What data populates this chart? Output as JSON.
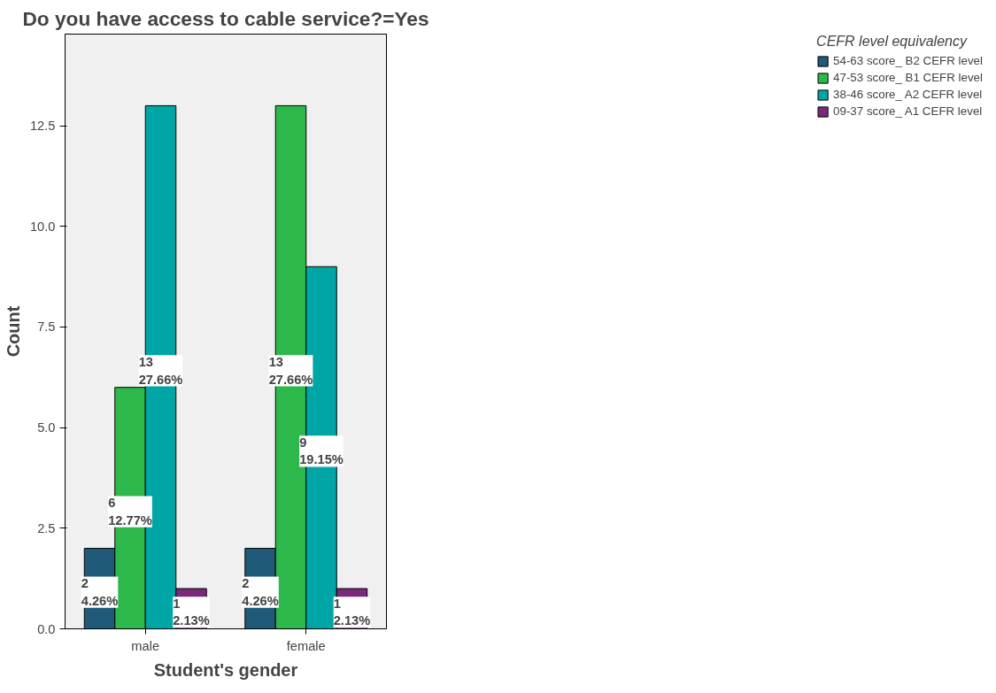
{
  "chart_data": {
    "type": "bar",
    "title": "Do you have access to cable service?=Yes",
    "xlabel": "Student's gender",
    "ylabel": "Count",
    "legend_title": "CEFR level equivalency",
    "categories": [
      "male",
      "female"
    ],
    "series": [
      {
        "name": "54-63 score_ B2 CEFR level",
        "color": "#1f5b78",
        "values": [
          2,
          2
        ],
        "value_labels": [
          "2\n4.26%",
          "2\n4.26%"
        ]
      },
      {
        "name": "47-53 score_ B1 CEFR level",
        "color": "#2db84b",
        "values": [
          6,
          13
        ],
        "value_labels": [
          "6\n12.77%",
          "13\n27.66%"
        ]
      },
      {
        "name": "38-46 score_ A2 CEFR level",
        "color": "#00a6a6",
        "values": [
          13,
          9
        ],
        "value_labels": [
          "13\n27.66%",
          "9\n19.15%"
        ]
      },
      {
        "name": "09-37 score_ A1 CEFR level",
        "color": "#7b2a7b",
        "values": [
          1,
          1
        ],
        "value_labels": [
          "1\n2.13%",
          "1\n2.13%"
        ]
      }
    ],
    "ylim": [
      0,
      14.78
    ],
    "yticks": [
      {
        "value": 0,
        "label": "0.0"
      },
      {
        "value": 2.5,
        "label": "2.5"
      },
      {
        "value": 5,
        "label": "5.0"
      },
      {
        "value": 7.5,
        "label": "7.5"
      },
      {
        "value": 10,
        "label": "10.0"
      },
      {
        "value": 12.5,
        "label": "12.5"
      }
    ],
    "grid": false,
    "legend": "right"
  }
}
